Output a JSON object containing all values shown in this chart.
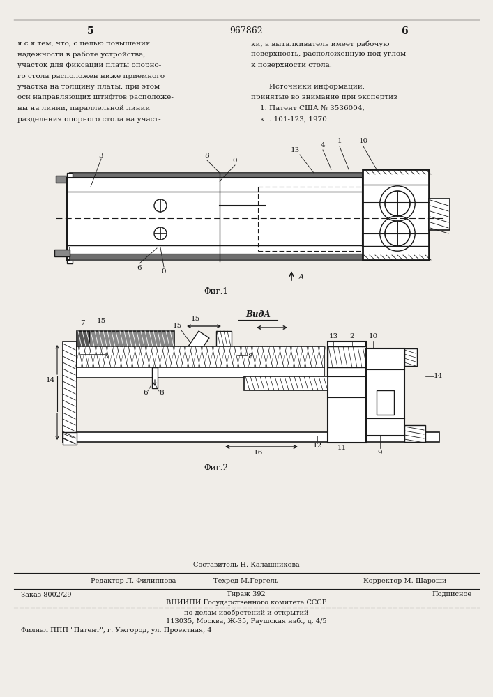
{
  "page_number_left": "5",
  "page_number_center": "967862",
  "page_number_right": "6",
  "background_color": "#f0ede8",
  "text_color": "#1a1a1a",
  "left_column_text": [
    "я с я тем, что, с целью повышения",
    "надежности в работе устройства,",
    "участок для фиксации платы опорно-",
    "го стола расположен ниже приемного",
    "участка на толщину платы, при этом",
    "оси направляющих штифтов расположе-",
    "ны на линии, параллельной линии",
    "разделения опорного стола на участ-"
  ],
  "right_column_text": [
    "ки, а выталкиватель имеет рабочую",
    "поверхность, расположенную под углом",
    "к поверхности стола.",
    "",
    "        Источники информации,",
    "принятые во внимание при экспертиз",
    "    1. Патент США № 3536004,",
    "    кл. 101-123, 1970."
  ],
  "fig1_label": "Фиг.1",
  "fig2_label": "Фиг.2",
  "vida_label": "ВидА",
  "arrow_label": "А",
  "bottom_section": {
    "compiler_line": "Составитель Н. Калашникова",
    "editor_label": "Редактор Л. Филиппова",
    "tehred_label": "Техред М.Гергель",
    "corrector_label": "Корректор М. Шароши",
    "order_label": "Заказ 8002/29",
    "tiraz_label": "Тираж 392",
    "podpisnoe_label": "Подписное",
    "vniip_line": "ВНИИПИ Государственного комитета СССР",
    "affairs_line": "по делам изобретений и открытий",
    "address_line": "113035, Москва, Ж-35, Раушская наб., д. 4/5",
    "filial_line": "Филиал ППП \"Патент\", г. Ужгород, ул. Проектная, 4"
  }
}
